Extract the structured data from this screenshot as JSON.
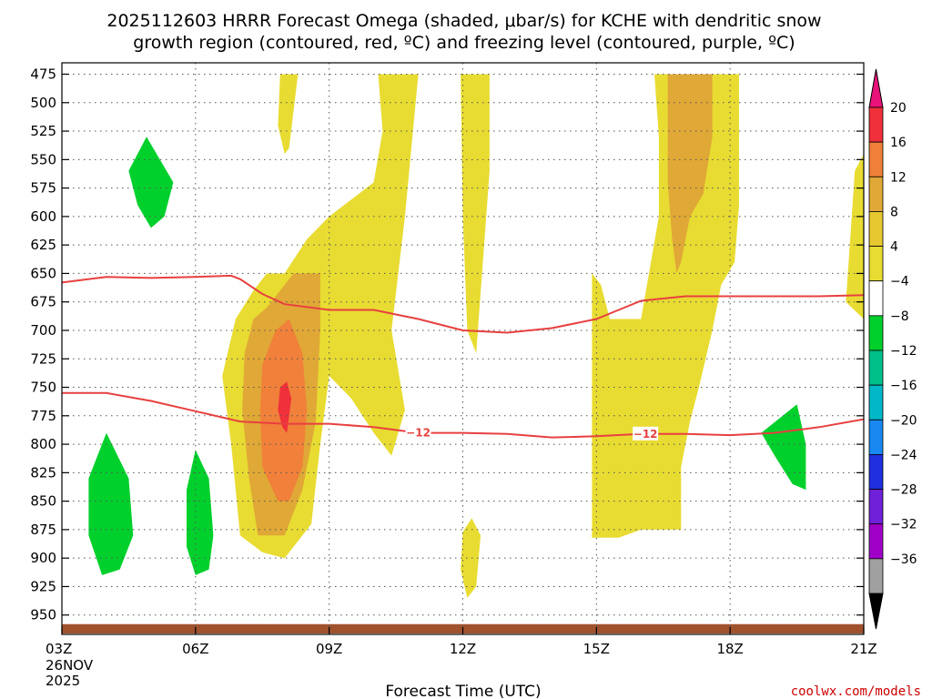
{
  "chart_data": {
    "type": "heatmap",
    "title_line1": "2025112603 HRRR Forecast Omega (shaded, μbar/s) for KCHE with dendritic snow",
    "title_line2": "growth region (contoured, red, ºC) and freezing level (contoured, purple, ºC)",
    "xlabel": "Forecast Time (UTC)",
    "x_ticks": [
      {
        "hour": 0,
        "label": "03Z",
        "sub": [
          "26NOV",
          "2025"
        ]
      },
      {
        "hour": 3,
        "label": "06Z"
      },
      {
        "hour": 6,
        "label": "09Z"
      },
      {
        "hour": 9,
        "label": "12Z"
      },
      {
        "hour": 12,
        "label": "15Z"
      },
      {
        "hour": 15,
        "label": "18Z"
      },
      {
        "hour": 18,
        "label": "21Z"
      }
    ],
    "y_ticks": [
      475,
      500,
      525,
      550,
      575,
      600,
      625,
      650,
      675,
      700,
      725,
      750,
      775,
      800,
      825,
      850,
      875,
      900,
      925,
      950
    ],
    "ylim": [
      465,
      967
    ],
    "xlim": [
      0,
      18
    ],
    "colorbar": {
      "levels": [
        "20",
        "16",
        "12",
        "8",
        "4",
        "−4",
        "−8",
        "−12",
        "−16",
        "−20",
        "−24",
        "−28",
        "−32",
        "−36"
      ],
      "colors": [
        "#f0303a",
        "#f0803a",
        "#e0a836",
        "#e8c830",
        "#e8dc32",
        "#ffffff",
        "#00d02c",
        "#00c08a",
        "#00b8c8",
        "#1888f0",
        "#2030e0",
        "#7020d8",
        "#a000c8",
        "#a0a0a0"
      ],
      "top_color": "#e8127a",
      "bottom_color": "#000000"
    },
    "contours": [
      {
        "name": "upper-dgz-contour",
        "color": "#e84040",
        "points": [
          [
            0,
            658
          ],
          [
            1,
            653
          ],
          [
            2,
            654
          ],
          [
            3,
            653
          ],
          [
            3.8,
            652
          ],
          [
            4,
            655
          ],
          [
            4.5,
            668
          ],
          [
            5,
            677
          ],
          [
            6,
            682
          ],
          [
            7,
            682
          ],
          [
            8,
            690
          ],
          [
            9,
            700
          ],
          [
            10,
            702
          ],
          [
            11,
            698
          ],
          [
            12,
            690
          ],
          [
            12.5,
            682
          ],
          [
            13,
            674
          ],
          [
            14,
            670
          ],
          [
            15,
            670
          ],
          [
            16,
            670
          ],
          [
            17,
            670
          ],
          [
            18,
            669
          ]
        ]
      },
      {
        "name": "lower-dgz-contour",
        "color": "#e84040",
        "label": "−12",
        "label_positions": [
          [
            8,
            790
          ],
          [
            13.1,
            791
          ]
        ],
        "points": [
          [
            0,
            755
          ],
          [
            1,
            755
          ],
          [
            2,
            762
          ],
          [
            3,
            771
          ],
          [
            4,
            780
          ],
          [
            5,
            782
          ],
          [
            6,
            782
          ],
          [
            7,
            785
          ],
          [
            8,
            790
          ],
          [
            9,
            790
          ],
          [
            10,
            791
          ],
          [
            11,
            794
          ],
          [
            12,
            793
          ],
          [
            13,
            791
          ],
          [
            14,
            791
          ],
          [
            15,
            792
          ],
          [
            16,
            790
          ],
          [
            17,
            785
          ],
          [
            18,
            778
          ]
        ]
      }
    ],
    "shaded_regions": [
      {
        "name": "weak-ascent-plume-main",
        "color": "#e8dc32",
        "points": [
          [
            5,
            650
          ],
          [
            5.5,
            620
          ],
          [
            6,
            600
          ],
          [
            6.5,
            585
          ],
          [
            7,
            570
          ],
          [
            7.2,
            525
          ],
          [
            7.1,
            475
          ],
          [
            8,
            475
          ],
          [
            7.7,
            600
          ],
          [
            7.4,
            700
          ],
          [
            7.7,
            770
          ],
          [
            7.4,
            810
          ],
          [
            7,
            790
          ],
          [
            6.5,
            760
          ],
          [
            6,
            740
          ],
          [
            5.8,
            800
          ],
          [
            5.6,
            870
          ],
          [
            5,
            900
          ],
          [
            4.5,
            895
          ],
          [
            4,
            880
          ],
          [
            3.8,
            800
          ],
          [
            3.6,
            740
          ],
          [
            3.9,
            690
          ],
          [
            4.3,
            665
          ],
          [
            4.6,
            650
          ]
        ]
      },
      {
        "name": "weak-ascent-strip-left",
        "color": "#e8dc32",
        "points": [
          [
            4.9,
            475
          ],
          [
            5.3,
            475
          ],
          [
            5.1,
            540
          ],
          [
            5,
            545
          ],
          [
            4.85,
            520
          ]
        ]
      },
      {
        "name": "weak-ascent-column-mid",
        "color": "#e8dc32",
        "points": [
          [
            8.95,
            475
          ],
          [
            9.6,
            475
          ],
          [
            9.6,
            560
          ],
          [
            9.3,
            720
          ],
          [
            9.1,
            700
          ],
          [
            9,
            600
          ]
        ]
      },
      {
        "name": "weak-ascent-blob-mid",
        "color": "#e8dc32",
        "points": [
          [
            9,
            877
          ],
          [
            9.2,
            865
          ],
          [
            9.4,
            880
          ],
          [
            9.3,
            925
          ],
          [
            9.1,
            935
          ],
          [
            8.95,
            910
          ]
        ]
      },
      {
        "name": "weak-ascent-column-right",
        "color": "#e8dc32",
        "points": [
          [
            13.3,
            475
          ],
          [
            15.2,
            475
          ],
          [
            15.2,
            590
          ],
          [
            15.1,
            640
          ],
          [
            14.8,
            660
          ],
          [
            14.6,
            700
          ],
          [
            14.3,
            750
          ],
          [
            14.1,
            780
          ],
          [
            13.9,
            820
          ],
          [
            13.9,
            875
          ],
          [
            13,
            875
          ],
          [
            12.5,
            882
          ],
          [
            11.9,
            882
          ],
          [
            11.9,
            750
          ],
          [
            11.9,
            650
          ],
          [
            12.1,
            660
          ],
          [
            12.3,
            690
          ],
          [
            13,
            690
          ],
          [
            13.4,
            600
          ],
          [
            13.4,
            530
          ]
        ]
      },
      {
        "name": "weak-ascent-sliver-edge",
        "color": "#e8dc32",
        "points": [
          [
            17.6,
            675
          ],
          [
            17.8,
            560
          ],
          [
            18,
            545
          ],
          [
            18,
            690
          ]
        ]
      },
      {
        "name": "moderate-ascent-core",
        "color": "#e0a836",
        "points": [
          [
            4.6,
            680
          ],
          [
            5.2,
            650
          ],
          [
            5.8,
            650
          ],
          [
            5.8,
            700
          ],
          [
            5.7,
            780
          ],
          [
            5.4,
            840
          ],
          [
            5,
            880
          ],
          [
            4.4,
            880
          ],
          [
            4.2,
            830
          ],
          [
            4.05,
            770
          ],
          [
            4.1,
            720
          ],
          [
            4.3,
            690
          ]
        ]
      },
      {
        "name": "moderate-ascent-column",
        "color": "#e0a836",
        "points": [
          [
            13.6,
            475
          ],
          [
            14.6,
            475
          ],
          [
            14.6,
            530
          ],
          [
            14.4,
            580
          ],
          [
            14.1,
            600
          ],
          [
            13.9,
            640
          ],
          [
            13.8,
            650
          ],
          [
            13.7,
            620
          ],
          [
            13.6,
            570
          ]
        ]
      },
      {
        "name": "strong-ascent-core",
        "color": "#f0803a",
        "points": [
          [
            4.8,
            700
          ],
          [
            5.1,
            690
          ],
          [
            5.4,
            720
          ],
          [
            5.5,
            770
          ],
          [
            5.4,
            820
          ],
          [
            5.1,
            850
          ],
          [
            4.85,
            850
          ],
          [
            4.5,
            820
          ],
          [
            4.45,
            770
          ],
          [
            4.5,
            730
          ]
        ]
      },
      {
        "name": "peak-ascent-spike",
        "color": "#f0303a",
        "points": [
          [
            4.9,
            750
          ],
          [
            5.05,
            745
          ],
          [
            5.15,
            760
          ],
          [
            5.05,
            790
          ],
          [
            4.95,
            785
          ],
          [
            4.85,
            770
          ]
        ]
      },
      {
        "name": "descent-blob-upper-left",
        "color": "#00d02c",
        "points": [
          [
            1.9,
            530
          ],
          [
            2.5,
            570
          ],
          [
            2.3,
            600
          ],
          [
            2,
            610
          ],
          [
            1.7,
            590
          ],
          [
            1.5,
            560
          ]
        ]
      },
      {
        "name": "descent-blob-lower-left",
        "color": "#00d02c",
        "points": [
          [
            1,
            790
          ],
          [
            1.5,
            830
          ],
          [
            1.6,
            880
          ],
          [
            1.3,
            910
          ],
          [
            0.9,
            915
          ],
          [
            0.6,
            880
          ],
          [
            0.6,
            830
          ]
        ]
      },
      {
        "name": "descent-blob-lower-mid",
        "color": "#00d02c",
        "points": [
          [
            3,
            805
          ],
          [
            3.3,
            830
          ],
          [
            3.4,
            880
          ],
          [
            3.3,
            910
          ],
          [
            3,
            915
          ],
          [
            2.8,
            890
          ],
          [
            2.8,
            840
          ]
        ]
      },
      {
        "name": "descent-blob-right",
        "color": "#00d02c",
        "points": [
          [
            15.7,
            790
          ],
          [
            16.5,
            765
          ],
          [
            16.7,
            800
          ],
          [
            16.7,
            840
          ],
          [
            16.4,
            835
          ],
          [
            16,
            810
          ]
        ]
      }
    ],
    "terrain": {
      "name": "ground-surface",
      "color": "#a0522d",
      "top_pressure": 958
    },
    "credit": "coolwx.com/models",
    "credit_color": "#cc0000"
  }
}
